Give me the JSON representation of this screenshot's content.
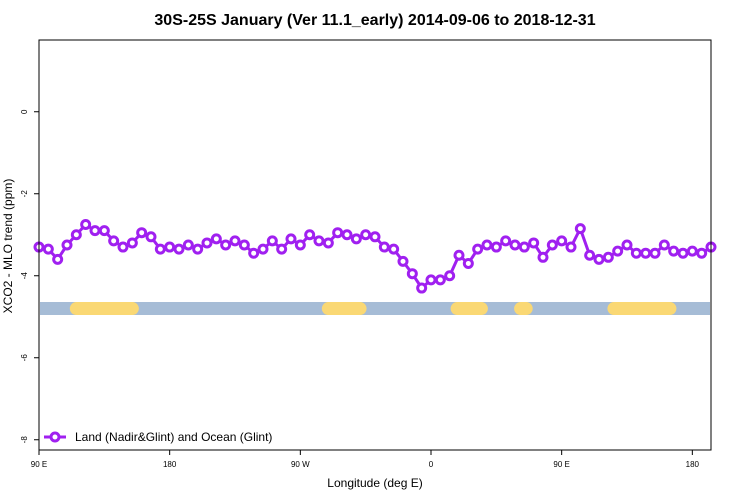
{
  "chart_data": {
    "type": "line",
    "title": "30S-25S January (Ver 11.1_early)   2014-09-06 to 2018-12-31",
    "xlabel": "Longitude (deg E)",
    "ylabel": "XCO2 - MLO trend (ppm)",
    "xlim": [
      90,
      450
    ],
    "ylim": [
      -8.25,
      1.75
    ],
    "x_ticks": [
      {
        "value": 90,
        "label": "90 E"
      },
      {
        "value": 160,
        "label": "180"
      },
      {
        "value": 230,
        "label": "90 W"
      },
      {
        "value": 300,
        "label": "0"
      },
      {
        "value": 370,
        "label": "90 E"
      },
      {
        "value": 440,
        "label": "180"
      }
    ],
    "y_ticks": [
      {
        "value": 0,
        "label": "0"
      },
      {
        "value": -2,
        "label": "-2"
      },
      {
        "value": -4,
        "label": "-4"
      },
      {
        "value": -6,
        "label": "-6"
      },
      {
        "value": -8,
        "label": "-8"
      }
    ],
    "grid": false,
    "legend_position": "bottom-left",
    "series": [
      {
        "name": "Land (Nadir&Glint) and Ocean (Glint)",
        "color": "#a020f0",
        "x": [
          90,
          95,
          100,
          105,
          110,
          115,
          120,
          125,
          130,
          135,
          140,
          145,
          150,
          155,
          160,
          165,
          170,
          175,
          180,
          185,
          190,
          195,
          200,
          205,
          210,
          215,
          220,
          225,
          230,
          235,
          240,
          245,
          250,
          255,
          260,
          265,
          270,
          275,
          280,
          285,
          290,
          295,
          300,
          305,
          310,
          315,
          320,
          325,
          330,
          335,
          340,
          345,
          350,
          355,
          360,
          365,
          370,
          375,
          380,
          385,
          390,
          395,
          400,
          405,
          410,
          415,
          420,
          425,
          430,
          435,
          440,
          445,
          450
        ],
        "values": [
          -3.3,
          -3.35,
          -3.6,
          -3.25,
          -3.0,
          -2.75,
          -2.9,
          -2.9,
          -3.15,
          -3.3,
          -3.2,
          -2.95,
          -3.05,
          -3.35,
          -3.3,
          -3.35,
          -3.25,
          -3.35,
          -3.2,
          -3.1,
          -3.25,
          -3.15,
          -3.25,
          -3.45,
          -3.35,
          -3.15,
          -3.35,
          -3.1,
          -3.25,
          -3.0,
          -3.15,
          -3.2,
          -2.95,
          -3.0,
          -3.1,
          -3.0,
          -3.05,
          -3.3,
          -3.35,
          -3.65,
          -3.95,
          -4.3,
          -4.1,
          -4.1,
          -4.0,
          -3.5,
          -3.7,
          -3.35,
          -3.25,
          -3.3,
          -3.15,
          -3.25,
          -3.3,
          -3.2,
          -3.55,
          -3.25,
          -3.15,
          -3.3,
          -2.85,
          -3.5,
          -3.6,
          -3.55,
          -3.4,
          -3.25,
          -3.45,
          -3.45,
          -3.45,
          -3.25,
          -3.4,
          -3.45,
          -3.4,
          -3.45,
          -3.3
        ],
        "marker": "circle"
      }
    ],
    "surface_strip": {
      "y": -4.8,
      "colors": {
        "ocean": "#a6bcd6",
        "land": "#fad874"
      },
      "land_segments": [
        [
          110,
          140
        ],
        [
          245,
          262
        ],
        [
          314,
          327
        ],
        [
          348,
          351
        ],
        [
          398,
          428
        ]
      ]
    }
  }
}
